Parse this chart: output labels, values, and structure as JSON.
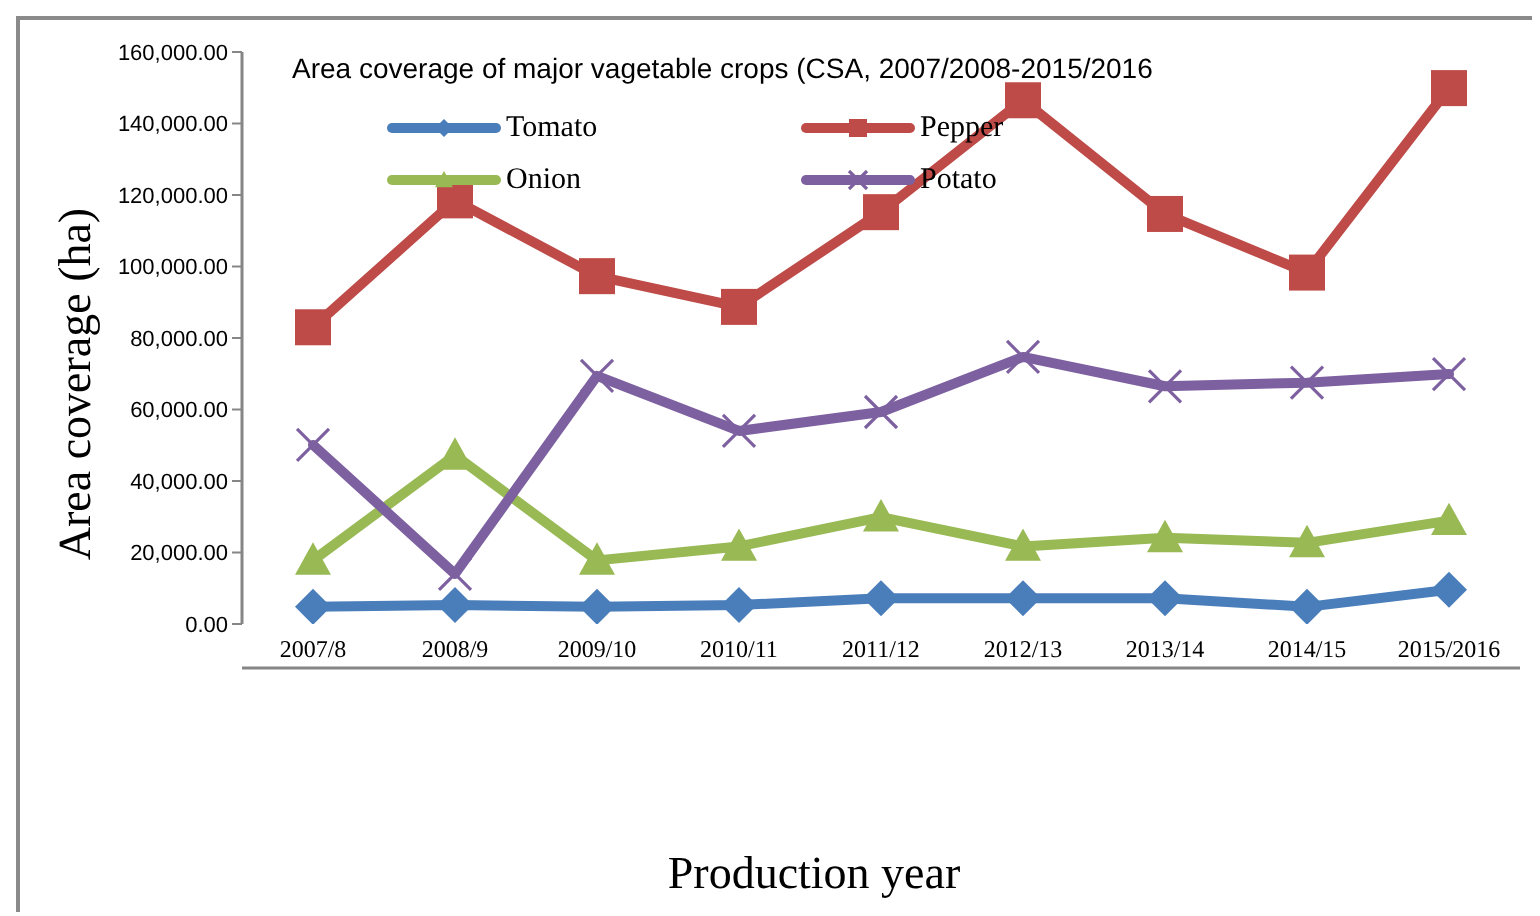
{
  "chart_data": {
    "type": "line",
    "title": "Area coverage of major vagetable crops (CSA, 2007/2008-2015/2016",
    "xlabel": "Production year",
    "ylabel": "Area coverage (ha)",
    "categories": [
      "2007/8",
      "2008/9",
      "2009/10",
      "2010/11",
      "2011/12",
      "2012/13",
      "2013/14",
      "2014/15",
      "2015/2016"
    ],
    "series": [
      {
        "name": "Tomato",
        "color": "#4a7ebb",
        "marker": "diamond",
        "values": [
          4800,
          5300,
          4800,
          5300,
          7200,
          7200,
          7200,
          4800,
          9600
        ]
      },
      {
        "name": "Pepper",
        "color": "#be4b48",
        "marker": "square",
        "values": [
          83000,
          118500,
          97300,
          88700,
          115200,
          146500,
          114700,
          98300,
          149900
        ]
      },
      {
        "name": "Onion",
        "color": "#98b954",
        "marker": "triangle",
        "values": [
          17800,
          47200,
          17800,
          21700,
          29900,
          21700,
          24100,
          22700,
          28900
        ]
      },
      {
        "name": "Potato",
        "color": "#7d60a0",
        "marker": "cross",
        "values": [
          50100,
          14000,
          69400,
          54000,
          59300,
          74700,
          66500,
          67500,
          69900
        ]
      }
    ],
    "ylim": [
      0,
      160000
    ],
    "yticks": [
      {
        "value": 0,
        "label": "0.00"
      },
      {
        "value": 20000,
        "label": "20,000.00"
      },
      {
        "value": 40000,
        "label": "40,000.00"
      },
      {
        "value": 60000,
        "label": "60,000.00"
      },
      {
        "value": 80000,
        "label": "80,000.00"
      },
      {
        "value": 100000,
        "label": "100,000.00"
      },
      {
        "value": 120000,
        "label": "120,000.00"
      },
      {
        "value": 140000,
        "label": "140,000.00"
      },
      {
        "value": 160000,
        "label": "160,000.00"
      }
    ],
    "legend": "top"
  }
}
